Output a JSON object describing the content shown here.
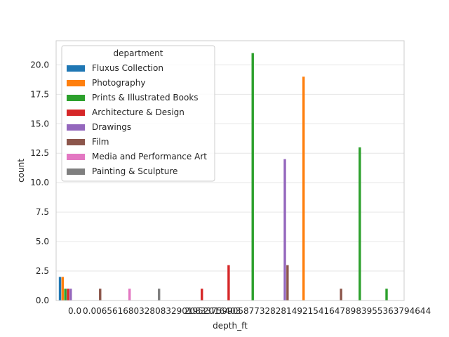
{
  "chart_data": {
    "type": "bar",
    "title": "",
    "xlabel": "depth_ft",
    "ylabel": "count",
    "ylim": [
      0,
      22.05
    ],
    "yticks": [
      "0.0",
      "2.5",
      "5.0",
      "7.5",
      "10.0",
      "12.5",
      "15.0",
      "17.5",
      "20.0"
    ],
    "grid": "horizontal",
    "legend_title": "department",
    "legend_position": "upper-left",
    "categories": [
      "0.0",
      "0.0065616",
      "0.0328083",
      "0.0852",
      "0.1640",
      "0.208333",
      "0.2579",
      "0.328",
      "0.3937",
      "0.4921",
      "0.5904",
      "0.65616",
      "0.7218"
    ],
    "x_tick_text": "0.0 0.006561680328083 9.0852016403 0.32080383757 99058773 2.8281 4921 5416 4878 3 9 2 9 5 0 5 6 5 4 6 3 8 7 9 4 6 4 4",
    "x_tick_labels_visible": [
      "0.0",
      "0.0065616803280832901952016403",
      "2083375990587732828149215416478983955363794644"
    ],
    "series": [
      {
        "name": "Fluxus Collection",
        "color": "#1f77b4",
        "values": [
          2,
          0,
          0,
          0,
          0,
          0,
          0,
          0,
          0,
          0,
          0,
          0,
          0
        ]
      },
      {
        "name": "Photography",
        "color": "#ff7f0e",
        "values": [
          2,
          0,
          0,
          0,
          0,
          0,
          0,
          0,
          0,
          19,
          0,
          0,
          0
        ]
      },
      {
        "name": "Prints & Illustrated Books",
        "color": "#2ca02c",
        "values": [
          1,
          0,
          0,
          0,
          0,
          0,
          0,
          21,
          0,
          0,
          0,
          13,
          1
        ]
      },
      {
        "name": "Architecture & Design",
        "color": "#d62728",
        "values": [
          1,
          0,
          0,
          0,
          0,
          1,
          3,
          0,
          0,
          0,
          0,
          0,
          0
        ]
      },
      {
        "name": "Drawings",
        "color": "#9467bd",
        "values": [
          1,
          0,
          0,
          0,
          0,
          0,
          0,
          0,
          12,
          0,
          0,
          0,
          0
        ]
      },
      {
        "name": "Film",
        "color": "#8c564b",
        "values": [
          0,
          1,
          0,
          0,
          0,
          0,
          0,
          0,
          3,
          0,
          1,
          0,
          0
        ]
      },
      {
        "name": "Media and Performance Art",
        "color": "#e377c2",
        "values": [
          0,
          0,
          1,
          0,
          0,
          0,
          0,
          0,
          0,
          0,
          0,
          0,
          0
        ]
      },
      {
        "name": "Painting & Sculpture",
        "color": "#7f7f7f",
        "values": [
          0,
          0,
          0,
          1,
          0,
          0,
          0,
          0,
          0,
          0,
          0,
          0,
          0
        ]
      }
    ]
  }
}
